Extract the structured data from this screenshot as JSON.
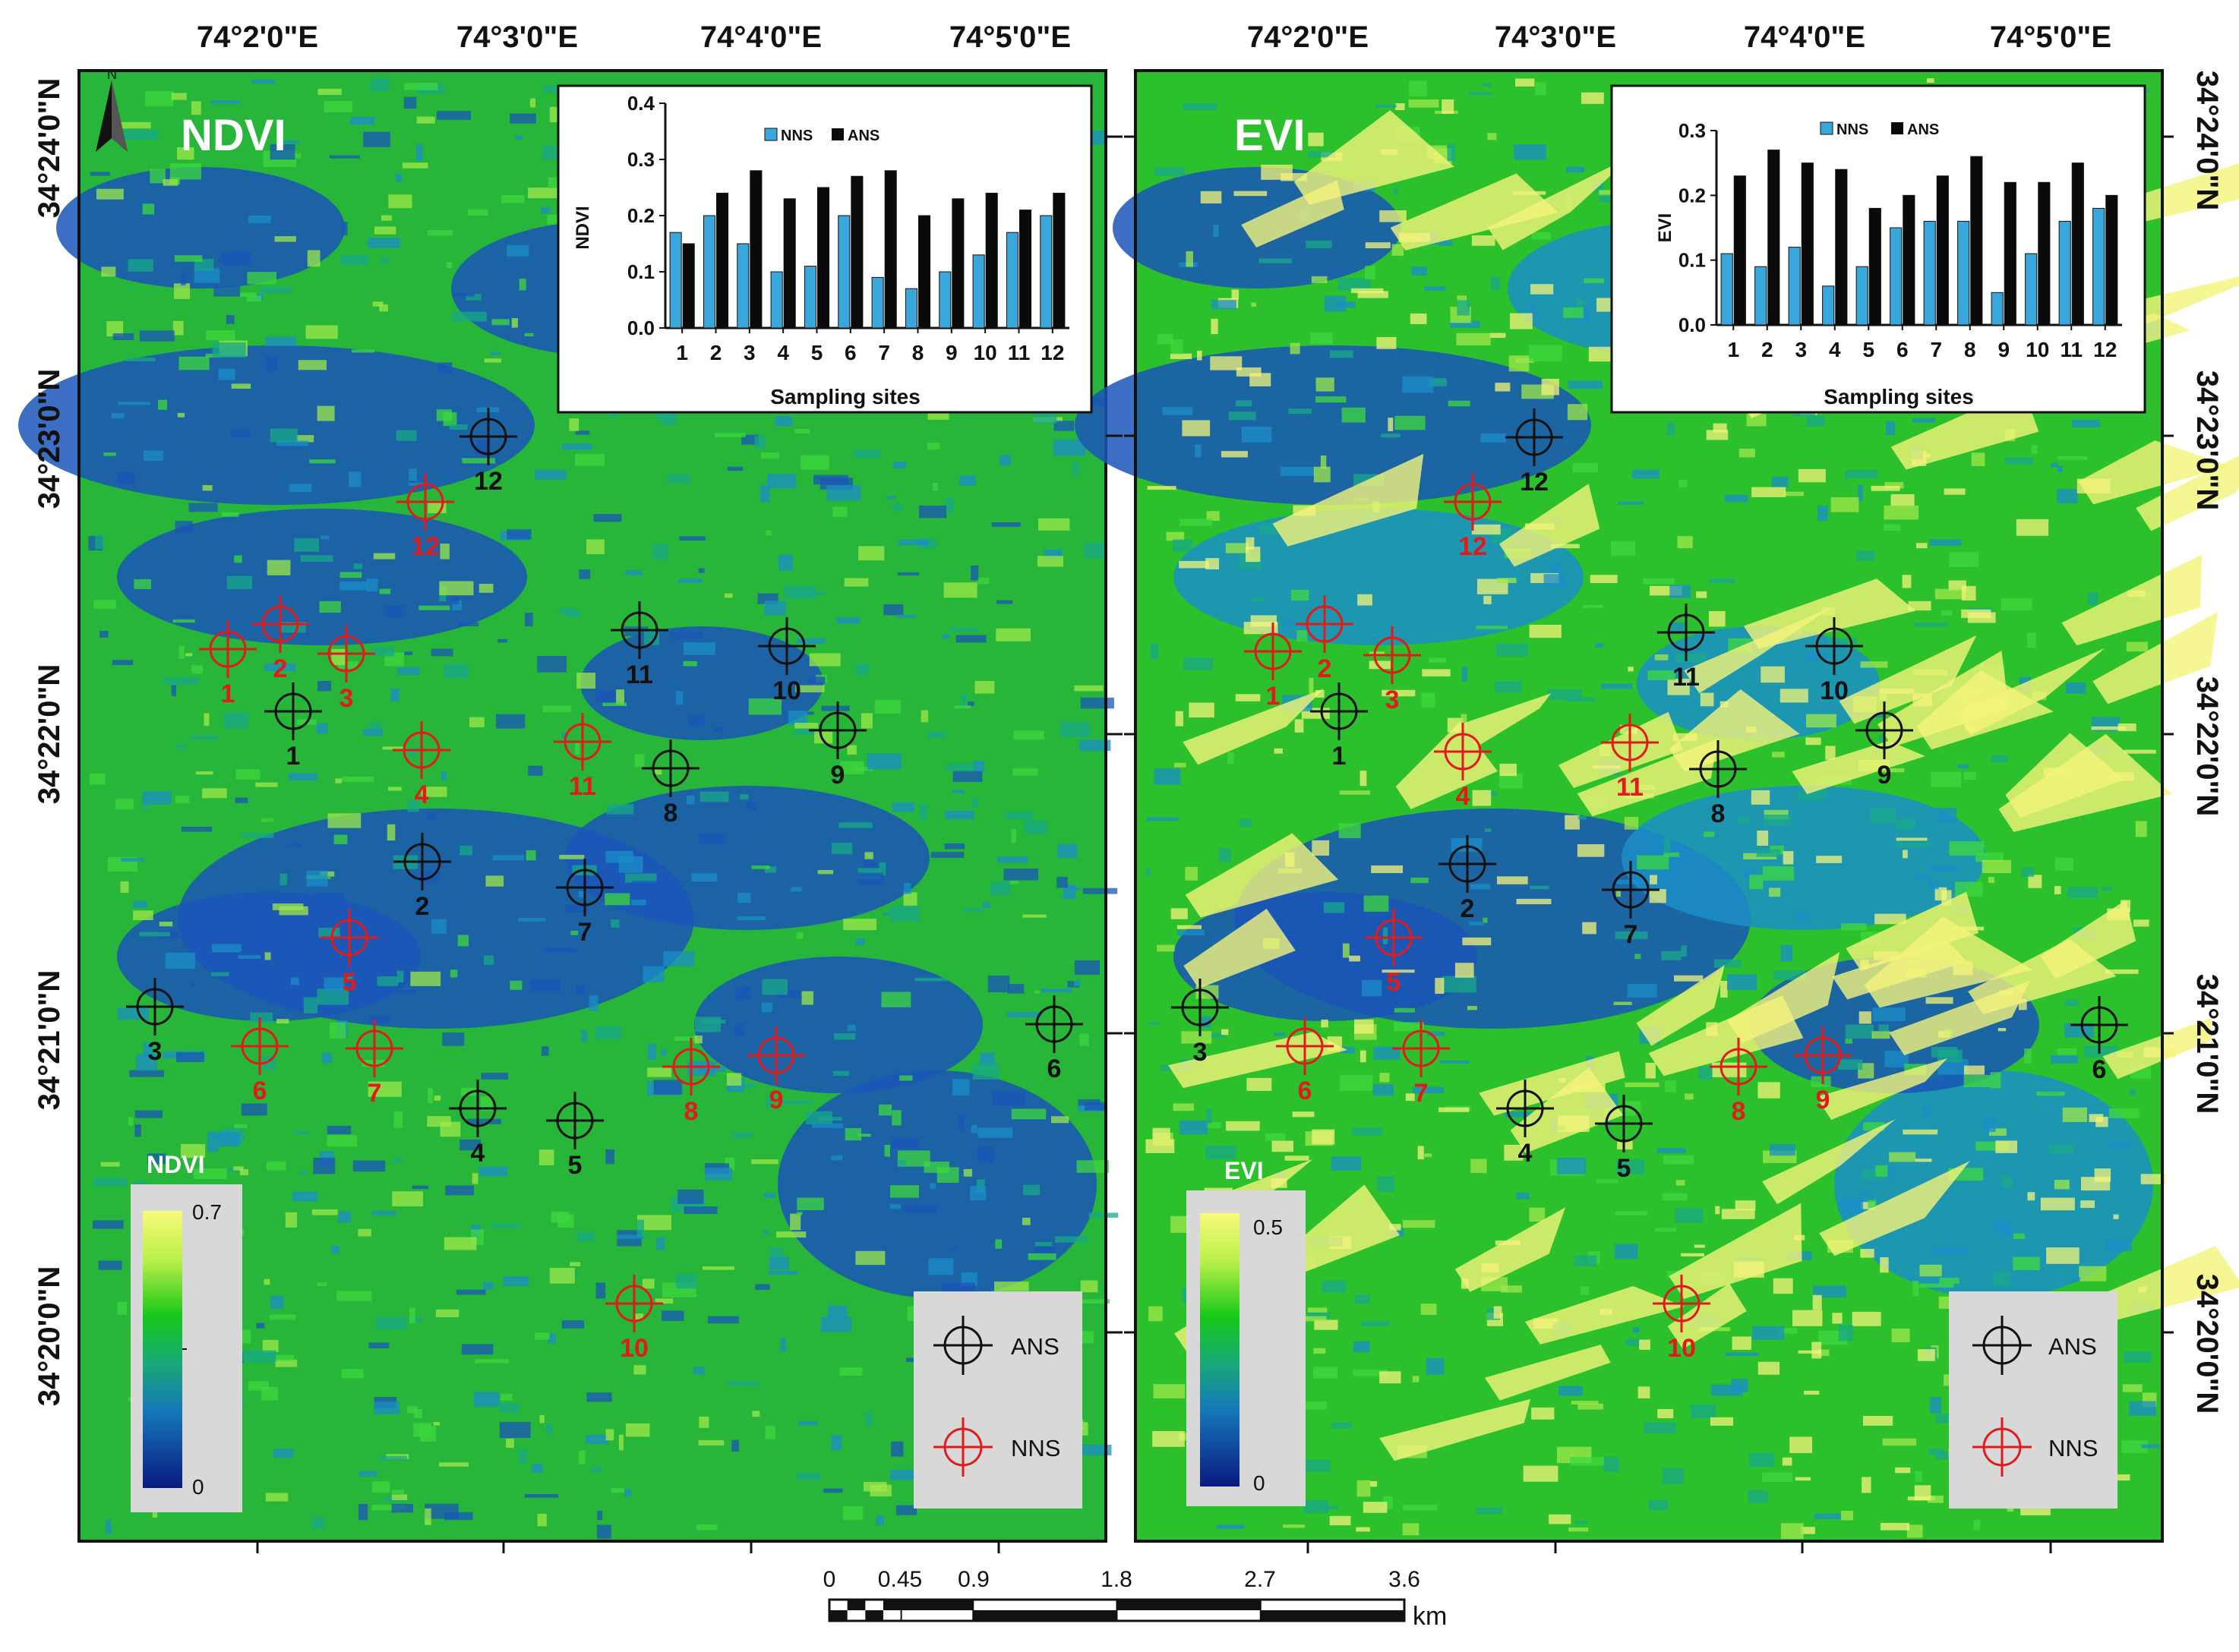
{
  "top_longitudes": [
    "74°2'0\"E",
    "74°3'0\"E",
    "74°4'0\"E",
    "74°5'0\"E"
  ],
  "latitudes": [
    "34°24'0\"N",
    "34°23'0\"N",
    "34°22'0\"N",
    "34°21'0\"N",
    "34°20'0\"N"
  ],
  "panels": [
    {
      "title": "NDVI",
      "legend_title": "NDVI",
      "legend_max": "0.7",
      "legend_min": "0",
      "inset": {
        "ylabel": "NDVI",
        "xlabel": "Sampling sites",
        "y_ticks": [
          "0.4",
          "0.3",
          "0.2",
          "0.1",
          "0.0"
        ]
      }
    },
    {
      "title": "EVI",
      "legend_title": "EVI",
      "legend_max": "0.5",
      "legend_min": "0",
      "inset": {
        "ylabel": "EVI",
        "xlabel": "Sampling sites",
        "y_ticks": [
          "0.3",
          "0.2",
          "0.1",
          "0.0"
        ]
      }
    }
  ],
  "legend_symbols": {
    "ans_label": "ANS",
    "nns_label": "NNS"
  },
  "site_labels": [
    "1",
    "2",
    "3",
    "4",
    "5",
    "6",
    "7",
    "8",
    "9",
    "10",
    "11",
    "12"
  ],
  "scale_bar": {
    "labels": [
      "0",
      "0.45",
      "0.9",
      "1.8",
      "2.7",
      "3.6"
    ],
    "unit": "km"
  },
  "north_arrow": "N",
  "colors": {
    "ans_marker": "#111111",
    "nns_marker": "#e21a1a",
    "nns_bar": "#3aa7dc",
    "ans_bar": "#0a0a0a",
    "ramp_high": "#f7f77a",
    "ramp_mid": "#14c814",
    "ramp_low": "#0a1a80"
  },
  "chart_data": [
    {
      "type": "bar",
      "title": "",
      "xlabel": "Sampling sites",
      "ylabel": "NDVI",
      "ylim": [
        0,
        0.4
      ],
      "categories": [
        "1",
        "2",
        "3",
        "4",
        "5",
        "6",
        "7",
        "8",
        "9",
        "10",
        "11",
        "12"
      ],
      "legend": "top",
      "series": [
        {
          "name": "NNS",
          "values": [
            0.17,
            0.2,
            0.15,
            0.1,
            0.11,
            0.2,
            0.09,
            0.07,
            0.1,
            0.13,
            0.17,
            0.2
          ]
        },
        {
          "name": "ANS",
          "values": [
            0.15,
            0.24,
            0.28,
            0.23,
            0.25,
            0.27,
            0.28,
            0.2,
            0.23,
            0.24,
            0.21,
            0.24
          ]
        }
      ]
    },
    {
      "type": "bar",
      "title": "",
      "xlabel": "Sampling sites",
      "ylabel": "EVI",
      "ylim": [
        0,
        0.3
      ],
      "categories": [
        "1",
        "2",
        "3",
        "4",
        "5",
        "6",
        "7",
        "8",
        "9",
        "10",
        "11",
        "12"
      ],
      "legend": "top",
      "series": [
        {
          "name": "NNS",
          "values": [
            0.11,
            0.09,
            0.12,
            0.06,
            0.09,
            0.15,
            0.16,
            0.16,
            0.05,
            0.11,
            0.16,
            0.18
          ]
        },
        {
          "name": "ANS",
          "values": [
            0.23,
            0.27,
            0.25,
            0.24,
            0.18,
            0.2,
            0.23,
            0.26,
            0.22,
            0.22,
            0.25,
            0.2
          ]
        }
      ]
    }
  ]
}
